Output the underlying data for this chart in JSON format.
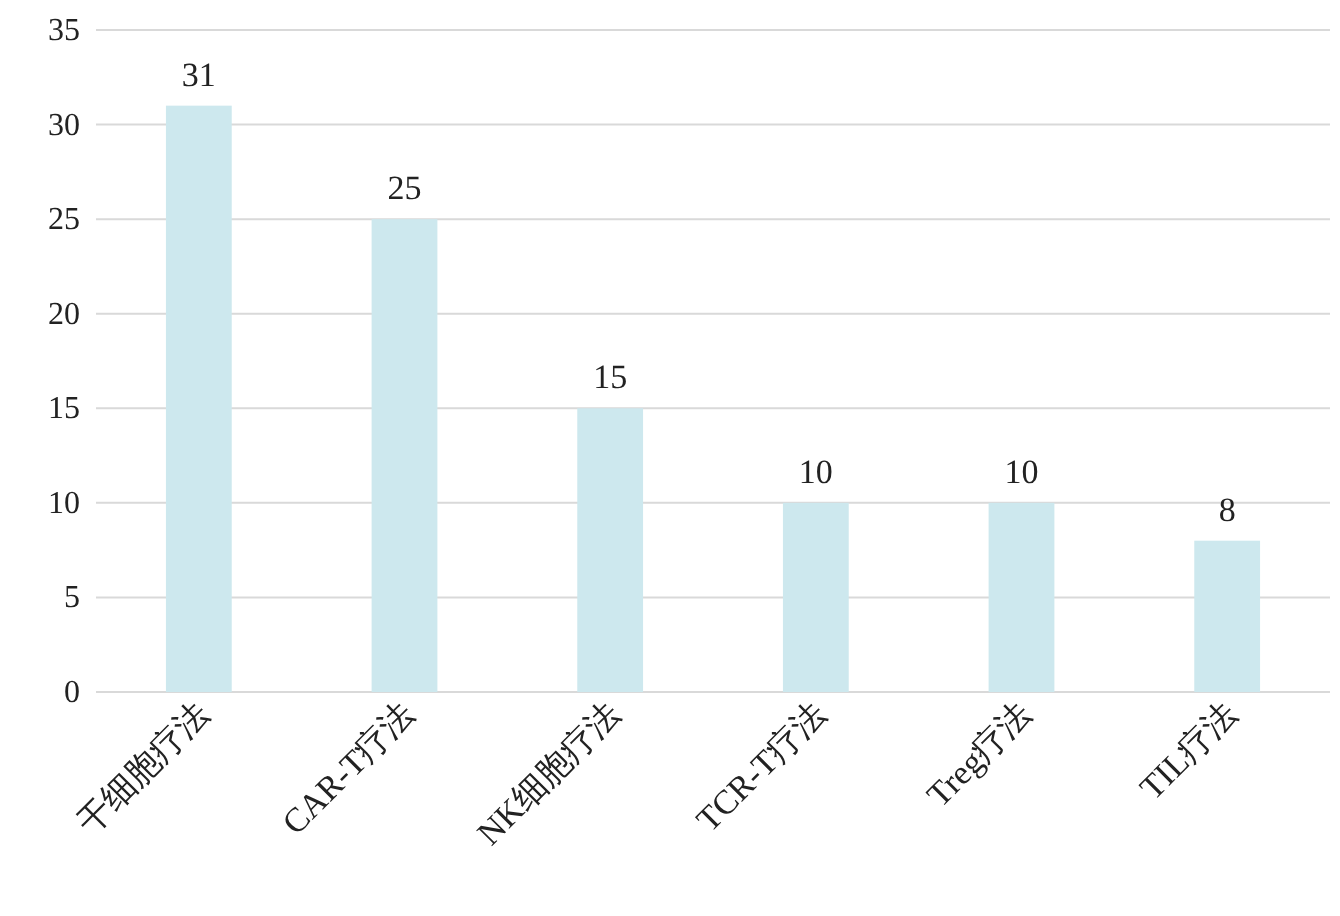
{
  "chart_data": {
    "type": "bar",
    "categories": [
      "干细胞疗法",
      "CAR-T疗法",
      "NK细胞疗法",
      "TCR-T疗法",
      "Treg疗法",
      "TIL疗法"
    ],
    "values": [
      31,
      25,
      15,
      10,
      10,
      8
    ],
    "color": "#cde8ee",
    "ylim": [
      0,
      35
    ],
    "yticks": [
      0,
      5,
      10,
      15,
      20,
      25,
      30,
      35
    ],
    "grid": "y",
    "data_labels": true
  }
}
